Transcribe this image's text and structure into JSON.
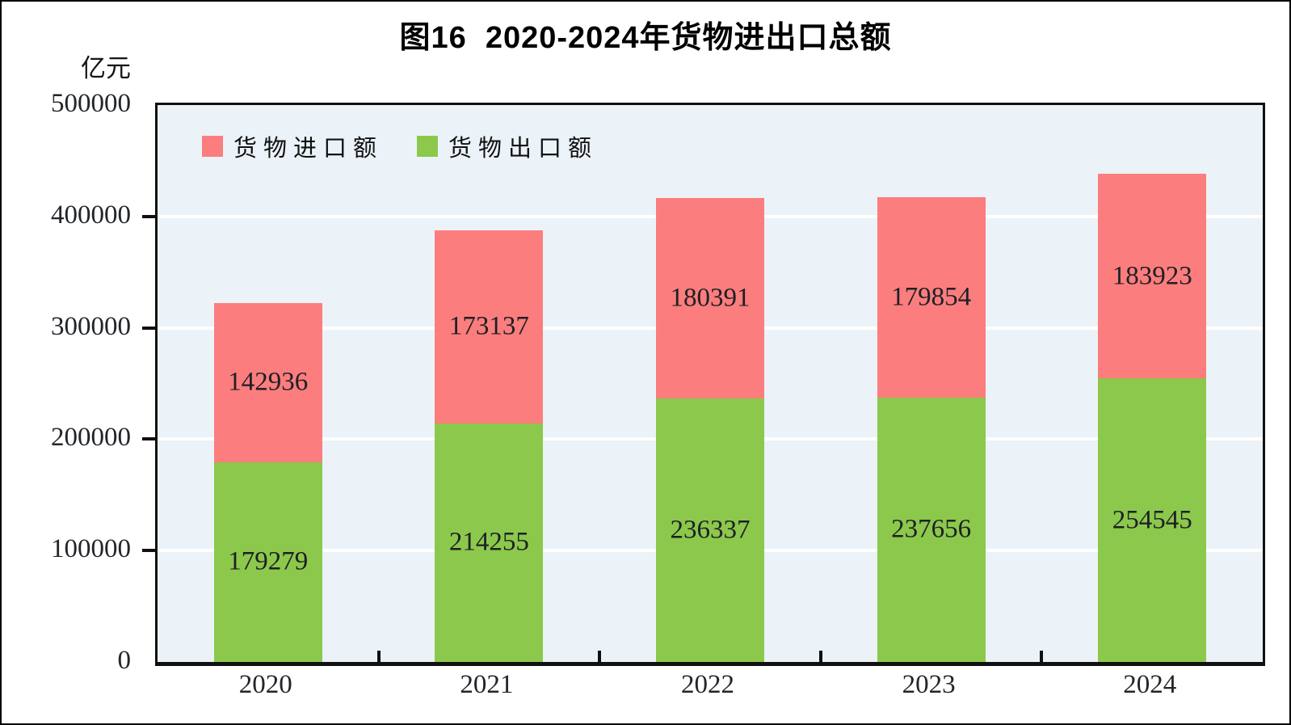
{
  "chart_data": {
    "type": "bar",
    "stacked": true,
    "title": "图16  2020-2024年货物进出口总额",
    "unit": "亿元",
    "categories": [
      "2020",
      "2021",
      "2022",
      "2023",
      "2024"
    ],
    "series": [
      {
        "name": "货物进口额",
        "stack": "top",
        "color": "#FC7D7D",
        "values": [
          142936,
          173137,
          180391,
          179854,
          183923
        ]
      },
      {
        "name": "货物出口额",
        "stack": "bottom",
        "color": "#8CC84B",
        "values": [
          179279,
          214255,
          236337,
          237656,
          254545
        ]
      }
    ],
    "ylim": [
      0,
      500000
    ],
    "yticks": [
      0,
      100000,
      200000,
      300000,
      400000,
      500000
    ],
    "legend_position": "top-left",
    "grid": true,
    "plot_bg": "#EBF3F8",
    "gridline_color": "#FFFFFF",
    "axis_color": "#101010",
    "label_color": "#1d2026"
  }
}
